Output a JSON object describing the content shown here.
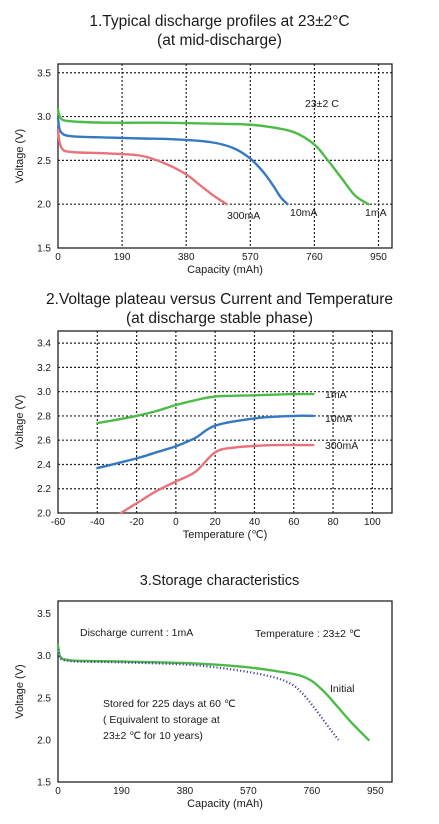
{
  "titles": {
    "t1_line1": "1.Typical discharge profiles at 23±2°C",
    "t1_line2": "(at mid-discharge)",
    "t2_line1": "2.Voltage plateau versus Current and Temperature",
    "t2_line2": "(at discharge stable phase)",
    "t3": "3.Storage characteristics"
  },
  "colors": {
    "green": "#4cbb47",
    "blue": "#3579c2",
    "red": "#e8737c",
    "dotted": "#4a3fa0",
    "grid": "#222222"
  },
  "chart_data": [
    {
      "type": "line",
      "title": "1.Typical discharge profiles at 23±2°C (at mid-discharge)",
      "xlabel": "Capacity (mAh)",
      "ylabel": "Voltage (V)",
      "xlim": [
        0,
        990
      ],
      "ylim": [
        1.5,
        3.6
      ],
      "xticks": [
        "0",
        "190",
        "380",
        "570",
        "760",
        "950"
      ],
      "yticks": [
        "1.5",
        "2.0",
        "2.5",
        "3.0",
        "3.5"
      ],
      "grid": true,
      "annotation": "23±2 C",
      "series": [
        {
          "name": "1mA",
          "color": "green",
          "x": [
            0,
            5,
            15,
            30,
            60,
            150,
            300,
            450,
            560,
            630,
            700,
            760,
            800,
            840,
            880,
            920
          ],
          "y": [
            3.08,
            3.0,
            2.96,
            2.95,
            2.94,
            2.93,
            2.93,
            2.92,
            2.91,
            2.88,
            2.82,
            2.68,
            2.5,
            2.3,
            2.1,
            2.0
          ]
        },
        {
          "name": "10mA",
          "color": "blue",
          "x": [
            0,
            5,
            15,
            30,
            60,
            150,
            250,
            350,
            450,
            520,
            570,
            610,
            640,
            660,
            680
          ],
          "y": [
            2.98,
            2.85,
            2.8,
            2.78,
            2.77,
            2.76,
            2.75,
            2.74,
            2.71,
            2.64,
            2.52,
            2.36,
            2.2,
            2.08,
            2.0
          ]
        },
        {
          "name": "300mA",
          "color": "red",
          "x": [
            0,
            5,
            15,
            30,
            60,
            150,
            250,
            320,
            380,
            420,
            460,
            500
          ],
          "y": [
            2.85,
            2.7,
            2.62,
            2.6,
            2.59,
            2.58,
            2.55,
            2.46,
            2.34,
            2.22,
            2.1,
            2.0
          ]
        }
      ]
    },
    {
      "type": "line",
      "title": "2.Voltage plateau versus Current and Temperature (at discharge stable phase)",
      "xlabel": "Temperature (℃)",
      "ylabel": "Voltage (V)",
      "xlim": [
        -60,
        110
      ],
      "ylim": [
        2.0,
        3.5
      ],
      "xticks": [
        "-60",
        "-40",
        "-20",
        "0",
        "20",
        "40",
        "60",
        "80",
        "100"
      ],
      "yticks": [
        "2.0",
        "2.2",
        "2.4",
        "2.6",
        "2.8",
        "3.0",
        "3.2",
        "3.4"
      ],
      "grid": true,
      "series": [
        {
          "name": "1mA",
          "color": "green",
          "x": [
            -40,
            -20,
            -10,
            0,
            10,
            20,
            40,
            60,
            70
          ],
          "y": [
            2.74,
            2.8,
            2.84,
            2.89,
            2.93,
            2.96,
            2.97,
            2.98,
            2.98
          ]
        },
        {
          "name": "10mA",
          "color": "blue",
          "x": [
            -40,
            -20,
            -10,
            0,
            10,
            20,
            40,
            60,
            70
          ],
          "y": [
            2.37,
            2.45,
            2.5,
            2.55,
            2.62,
            2.72,
            2.78,
            2.8,
            2.8
          ]
        },
        {
          "name": "300mA",
          "color": "red",
          "x": [
            -28,
            -20,
            -10,
            0,
            10,
            20,
            30,
            50,
            70
          ],
          "y": [
            2.0,
            2.08,
            2.18,
            2.26,
            2.34,
            2.5,
            2.54,
            2.56,
            2.56
          ]
        }
      ]
    },
    {
      "type": "line",
      "title": "3.Storage characteristics",
      "xlabel": "Capacity (mAh)",
      "ylabel": "Voltage (V)",
      "xlim": [
        0,
        1000
      ],
      "ylim": [
        1.5,
        3.65
      ],
      "xticks": [
        "0",
        "190",
        "380",
        "570",
        "760",
        "950"
      ],
      "yticks": [
        "1.5",
        "2.0",
        "2.5",
        "3.0",
        "3.5"
      ],
      "grid": false,
      "annotations": {
        "condition": "Discharge current : 1mA",
        "temperature": "Temperature : 23±2 ℃",
        "stored_line1": "Stored for 225 days at 60 ℃",
        "stored_line2": "( Equivalent to storage at",
        "stored_line3": "23±2 ℃  for 10 years)"
      },
      "series": [
        {
          "name": "Initial",
          "color": "green",
          "x": [
            0,
            5,
            15,
            30,
            60,
            200,
            400,
            550,
            650,
            720,
            760,
            800,
            840,
            880,
            930
          ],
          "y": [
            3.12,
            3.0,
            2.96,
            2.95,
            2.94,
            2.93,
            2.91,
            2.87,
            2.82,
            2.77,
            2.7,
            2.56,
            2.38,
            2.2,
            2.0
          ]
        },
        {
          "color": "dotted",
          "dotted": true,
          "x": [
            0,
            5,
            15,
            30,
            60,
            200,
            400,
            550,
            650,
            700,
            730,
            760,
            790,
            820,
            840
          ],
          "y": [
            3.08,
            2.98,
            2.95,
            2.94,
            2.93,
            2.92,
            2.89,
            2.82,
            2.74,
            2.66,
            2.56,
            2.42,
            2.26,
            2.1,
            2.0
          ]
        }
      ]
    }
  ]
}
